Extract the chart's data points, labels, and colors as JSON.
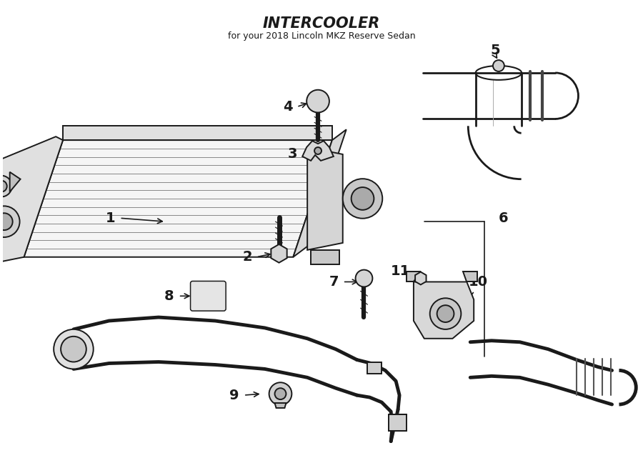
{
  "title": "INTERCOOLER",
  "subtitle": "for your 2018 Lincoln MKZ Reserve Sedan",
  "bg_color": "#ffffff",
  "line_color": "#1a1a1a",
  "label_color": "#000000",
  "figsize": [
    9.0,
    6.62
  ],
  "dpi": 100
}
